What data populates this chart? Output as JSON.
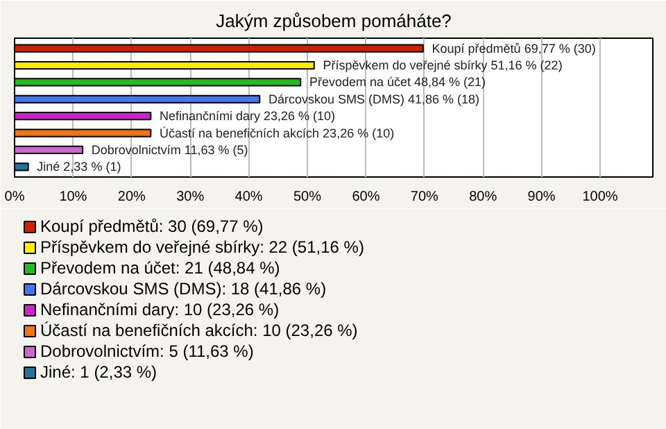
{
  "chart_data": {
    "type": "bar",
    "orientation": "horizontal",
    "title": "Jakým způsobem pomáháte?",
    "categories": [
      null,
      null,
      null,
      null,
      null,
      null,
      null,
      null
    ],
    "series": [
      {
        "name": "Koupí předmětů: 30 (69,77 %)",
        "color": "#cc2200",
        "values": [
          69.77,
          null,
          null,
          null,
          null,
          null,
          null,
          null
        ],
        "value_labels": [
          "Koupí předmětů 69,77 % (30)",
          null,
          null,
          null,
          null,
          null,
          null,
          null
        ]
      },
      {
        "name": "Příspěvkem do veřejné sbírky: 22 (51,16 %)",
        "color": "#ffee00",
        "values": [
          null,
          51.16,
          null,
          null,
          null,
          null,
          null,
          null
        ],
        "value_labels": [
          null,
          "Příspěvkem do veřejné sbírky 51,16 % (22)",
          null,
          null,
          null,
          null,
          null,
          null
        ]
      },
      {
        "name": "Převodem na účet: 21 (48,84 %)",
        "color": "#22bb22",
        "values": [
          null,
          null,
          48.84,
          null,
          null,
          null,
          null,
          null
        ],
        "value_labels": [
          null,
          null,
          "Převodem na účet 48,84 % (21)",
          null,
          null,
          null,
          null,
          null
        ]
      },
      {
        "name": "Dárcovskou SMS (DMS): 18 (41,86 %)",
        "color": "#4477ee",
        "values": [
          null,
          null,
          null,
          41.86,
          null,
          null,
          null,
          null
        ],
        "value_labels": [
          null,
          null,
          null,
          "Dárcovskou SMS (DMS) 41,86 % (18)",
          null,
          null,
          null,
          null
        ]
      },
      {
        "name": "Nefinančními dary: 10 (23,26 %)",
        "color": "#cc22cc",
        "values": [
          null,
          null,
          null,
          null,
          23.26,
          null,
          null,
          null
        ],
        "value_labels": [
          null,
          null,
          null,
          null,
          "Nefinančními dary 23,26 % (10)",
          null,
          null,
          null
        ]
      },
      {
        "name": "Účastí na benefičních akcích: 10 (23,26 %)",
        "color": "#ee7711",
        "values": [
          null,
          null,
          null,
          null,
          null,
          23.26,
          null,
          null
        ],
        "value_labels": [
          null,
          null,
          null,
          null,
          null,
          "Účastí na benefičních akcích 23,26 % (10)",
          null,
          null
        ]
      },
      {
        "name": "Dobrovolnictvím: 5 (11,63 %)",
        "color": "#cc66cc",
        "values": [
          null,
          null,
          null,
          null,
          null,
          null,
          11.63,
          null
        ],
        "value_labels": [
          null,
          null,
          null,
          null,
          null,
          null,
          "Dobrovolnictvím 11,63 % (5)",
          null
        ]
      },
      {
        "name": "Jiné: 1 (2,33 %)",
        "color": "#227799",
        "values": [
          null,
          null,
          null,
          null,
          null,
          null,
          null,
          2.33
        ],
        "value_labels": [
          null,
          null,
          null,
          null,
          null,
          null,
          null,
          "Jiné 2,33 % (1)"
        ]
      }
    ],
    "xlim": [
      0,
      109
    ],
    "xticks": [
      {
        "value": 0,
        "label": "0%"
      },
      {
        "value": 10,
        "label": "10%"
      },
      {
        "value": 20,
        "label": "20%"
      },
      {
        "value": 30,
        "label": "30%"
      },
      {
        "value": 40,
        "label": "40%"
      },
      {
        "value": 50,
        "label": "50%"
      },
      {
        "value": 60,
        "label": "60%"
      },
      {
        "value": 70,
        "label": "70%"
      },
      {
        "value": 80,
        "label": "80%"
      },
      {
        "value": 90,
        "label": "90%"
      },
      {
        "value": 100,
        "label": "100%"
      }
    ],
    "grid": "x",
    "legend": "bottom"
  }
}
